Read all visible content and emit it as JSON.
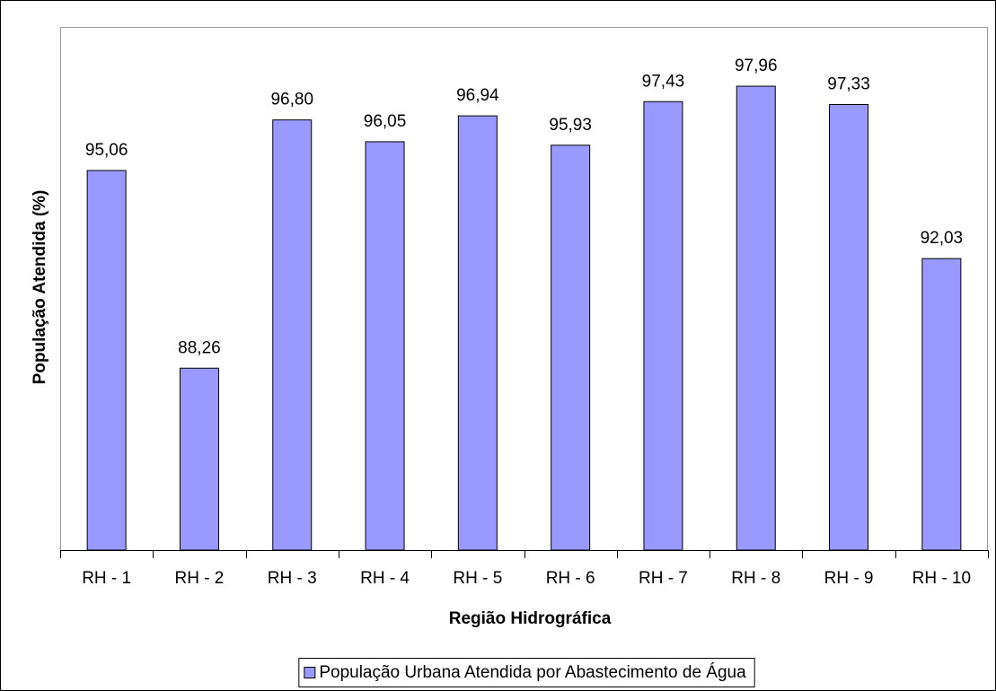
{
  "chart_data": {
    "type": "bar",
    "x_label": "Região Hidrográfica",
    "y_label": "População Atendida (%)",
    "categories": [
      "RH - 1",
      "RH - 2",
      "RH - 3",
      "RH - 4",
      "RH - 5",
      "RH - 6",
      "RH - 7",
      "RH - 8",
      "RH - 9",
      "RH - 10"
    ],
    "series": [
      {
        "name": "População Urbana Atendida por Abastecimento de Água",
        "color": "#9999ff",
        "values": [
          95.06,
          88.26,
          96.8,
          96.05,
          96.94,
          95.93,
          97.43,
          97.96,
          97.33,
          92.03
        ],
        "value_labels": [
          "95,06",
          "88,26",
          "96,80",
          "96,05",
          "96,94",
          "95,93",
          "97,43",
          "97,96",
          "97,33",
          "92,03"
        ]
      }
    ],
    "ylim": [
      82,
      100
    ],
    "legend": "bottom"
  }
}
